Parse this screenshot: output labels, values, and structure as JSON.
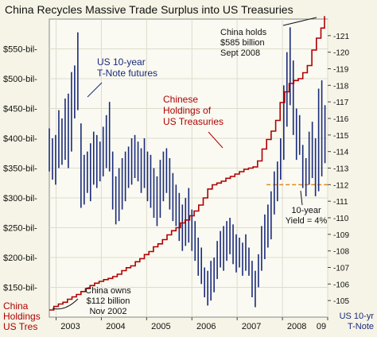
{
  "chart_data": {
    "type": "line",
    "title": "China Recycles Massive Trade Surplus into US Treasuries",
    "x_axis": {
      "tick_labels": [
        "2003",
        "2004",
        "2005",
        "2006",
        "2007",
        "2008",
        "09"
      ],
      "range": [
        2002.85,
        2009.0
      ]
    },
    "y_axis_left": {
      "label": "China Holdings US Tres",
      "label_lines": [
        "China",
        "Holdings",
        "US Tres"
      ],
      "tick_labels": [
        "$150-bil-",
        "$200-bil-",
        "$250-bil-",
        "$300-bil-",
        "$350-bil-",
        "$400-bil-",
        "$450-bil-",
        "$500-bil-",
        "$550-bil-"
      ],
      "tick_values": [
        150,
        200,
        250,
        300,
        350,
        400,
        450,
        500,
        550
      ],
      "range": [
        100,
        600
      ],
      "unit": "$ billion"
    },
    "y_axis_right": {
      "label": "US 10-yr T-Note",
      "label_lines": [
        "US 10-yr",
        "T-Note"
      ],
      "tick_values": [
        105,
        106,
        107,
        108,
        109,
        110,
        111,
        112,
        113,
        114,
        115,
        116,
        117,
        118,
        119,
        120,
        121
      ],
      "range": [
        104,
        122
      ]
    },
    "series": [
      {
        "name": "Chinese Holdings of US Treasuries",
        "label_lines": [
          "Chinese",
          "Holdings of",
          "US Treasuries"
        ],
        "axis": "left",
        "color": "#b00000",
        "style": "step",
        "points": [
          [
            2002.85,
            112
          ],
          [
            2002.95,
            118
          ],
          [
            2003.05,
            122
          ],
          [
            2003.15,
            125
          ],
          [
            2003.25,
            130
          ],
          [
            2003.35,
            134
          ],
          [
            2003.45,
            138
          ],
          [
            2003.55,
            143
          ],
          [
            2003.65,
            148
          ],
          [
            2003.75,
            153
          ],
          [
            2003.85,
            157
          ],
          [
            2003.95,
            160
          ],
          [
            2004.05,
            163
          ],
          [
            2004.15,
            165
          ],
          [
            2004.25,
            168
          ],
          [
            2004.35,
            172
          ],
          [
            2004.45,
            178
          ],
          [
            2004.55,
            183
          ],
          [
            2004.65,
            186
          ],
          [
            2004.75,
            193
          ],
          [
            2004.85,
            198
          ],
          [
            2004.95,
            205
          ],
          [
            2005.05,
            210
          ],
          [
            2005.15,
            218
          ],
          [
            2005.25,
            223
          ],
          [
            2005.35,
            230
          ],
          [
            2005.45,
            238
          ],
          [
            2005.55,
            245
          ],
          [
            2005.65,
            250
          ],
          [
            2005.75,
            258
          ],
          [
            2005.85,
            263
          ],
          [
            2005.95,
            270
          ],
          [
            2006.05,
            278
          ],
          [
            2006.15,
            288
          ],
          [
            2006.25,
            300
          ],
          [
            2006.35,
            315
          ],
          [
            2006.45,
            322
          ],
          [
            2006.55,
            325
          ],
          [
            2006.65,
            328
          ],
          [
            2006.75,
            333
          ],
          [
            2006.85,
            336
          ],
          [
            2006.95,
            340
          ],
          [
            2007.05,
            344
          ],
          [
            2007.15,
            348
          ],
          [
            2007.25,
            350
          ],
          [
            2007.35,
            352
          ],
          [
            2007.45,
            362
          ],
          [
            2007.55,
            382
          ],
          [
            2007.65,
            398
          ],
          [
            2007.75,
            412
          ],
          [
            2007.85,
            430
          ],
          [
            2007.95,
            460
          ],
          [
            2008.05,
            478
          ],
          [
            2008.15,
            492
          ],
          [
            2008.25,
            497
          ],
          [
            2008.35,
            500
          ],
          [
            2008.45,
            510
          ],
          [
            2008.55,
            522
          ],
          [
            2008.65,
            548
          ],
          [
            2008.75,
            568
          ],
          [
            2008.85,
            585
          ],
          [
            2008.93,
            605
          ]
        ]
      },
      {
        "name": "US 10-year T-Note futures",
        "label_lines": [
          "US 10-year",
          "T-Note futures"
        ],
        "axis": "right",
        "color": "#1a2a7a",
        "style": "bars",
        "bars": [
          [
            2002.85,
            112.8,
            115.4
          ],
          [
            2002.92,
            112.3,
            114.8
          ],
          [
            2002.99,
            112.0,
            115.0
          ],
          [
            2003.06,
            113.0,
            116.5
          ],
          [
            2003.13,
            113.2,
            116.0
          ],
          [
            2003.2,
            113.5,
            117.2
          ],
          [
            2003.27,
            113.0,
            117.5
          ],
          [
            2003.34,
            114.0,
            118.8
          ],
          [
            2003.41,
            116.0,
            119.2
          ],
          [
            2003.48,
            116.5,
            121.2
          ],
          [
            2003.55,
            110.6,
            115.7
          ],
          [
            2003.62,
            110.8,
            113.8
          ],
          [
            2003.69,
            111.5,
            114.0
          ],
          [
            2003.76,
            111.0,
            114.5
          ],
          [
            2003.83,
            112.0,
            115.2
          ],
          [
            2003.9,
            111.8,
            115.0
          ],
          [
            2003.97,
            112.2,
            114.6
          ],
          [
            2004.04,
            112.5,
            115.5
          ],
          [
            2004.11,
            113.0,
            116.2
          ],
          [
            2004.18,
            112.8,
            117.0
          ],
          [
            2004.25,
            110.5,
            114.0
          ],
          [
            2004.32,
            109.6,
            112.5
          ],
          [
            2004.39,
            109.8,
            113.0
          ],
          [
            2004.46,
            110.5,
            113.6
          ],
          [
            2004.53,
            111.0,
            114.0
          ],
          [
            2004.6,
            111.8,
            114.3
          ],
          [
            2004.67,
            112.0,
            114.8
          ],
          [
            2004.74,
            112.4,
            115.0
          ],
          [
            2004.81,
            112.2,
            114.6
          ],
          [
            2004.88,
            111.5,
            114.2
          ],
          [
            2004.95,
            111.8,
            114.8
          ],
          [
            2005.02,
            111.0,
            114.0
          ],
          [
            2005.09,
            110.6,
            113.8
          ],
          [
            2005.16,
            110.0,
            113.0
          ],
          [
            2005.23,
            109.5,
            112.5
          ],
          [
            2005.3,
            110.0,
            113.5
          ],
          [
            2005.37,
            111.0,
            114.0
          ],
          [
            2005.44,
            111.5,
            114.2
          ],
          [
            2005.51,
            110.5,
            113.6
          ],
          [
            2005.58,
            109.8,
            112.7
          ],
          [
            2005.65,
            109.5,
            112.0
          ],
          [
            2005.72,
            108.6,
            111.5
          ],
          [
            2005.79,
            108.0,
            110.8
          ],
          [
            2005.86,
            108.3,
            111.2
          ],
          [
            2005.93,
            108.5,
            111.8
          ],
          [
            2006.0,
            108.0,
            110.5
          ],
          [
            2006.07,
            107.4,
            109.8
          ],
          [
            2006.14,
            106.5,
            108.8
          ],
          [
            2006.21,
            106.0,
            108.2
          ],
          [
            2006.28,
            105.2,
            107.0
          ],
          [
            2006.35,
            104.7,
            106.8
          ],
          [
            2006.42,
            105.0,
            107.4
          ],
          [
            2006.49,
            105.5,
            107.6
          ],
          [
            2006.56,
            106.3,
            108.6
          ],
          [
            2006.63,
            107.0,
            109.2
          ],
          [
            2006.7,
            106.8,
            109.5
          ],
          [
            2006.77,
            107.4,
            109.8
          ],
          [
            2006.84,
            107.8,
            110.0
          ],
          [
            2006.91,
            107.2,
            109.6
          ],
          [
            2006.98,
            106.7,
            109.0
          ],
          [
            2007.05,
            107.0,
            108.8
          ],
          [
            2007.12,
            106.5,
            108.5
          ],
          [
            2007.19,
            106.8,
            109.0
          ],
          [
            2007.26,
            106.5,
            108.2
          ],
          [
            2007.33,
            105.2,
            107.4
          ],
          [
            2007.4,
            104.6,
            106.8
          ],
          [
            2007.47,
            105.8,
            107.8
          ],
          [
            2007.54,
            106.8,
            109.5
          ],
          [
            2007.61,
            107.5,
            110.2
          ],
          [
            2007.68,
            108.2,
            110.8
          ],
          [
            2007.75,
            108.7,
            111.6
          ],
          [
            2007.82,
            110.2,
            112.8
          ],
          [
            2007.89,
            111.0,
            113.4
          ],
          [
            2007.96,
            112.3,
            114.8
          ],
          [
            2008.03,
            113.5,
            118.0
          ],
          [
            2008.1,
            115.5,
            120.0
          ],
          [
            2008.17,
            116.8,
            121.5
          ],
          [
            2008.24,
            115.0,
            119.5
          ],
          [
            2008.31,
            113.5,
            116.6
          ],
          [
            2008.38,
            113.8,
            116.2
          ],
          [
            2008.45,
            111.8,
            114.4
          ],
          [
            2008.52,
            111.3,
            113.6
          ],
          [
            2008.59,
            112.0,
            115.2
          ],
          [
            2008.66,
            112.4,
            115.8
          ],
          [
            2008.73,
            111.3,
            114.8
          ],
          [
            2008.8,
            111.6,
            117.8
          ],
          [
            2008.87,
            112.5,
            118.3
          ],
          [
            2008.94,
            113.3,
            116.8
          ]
        ]
      }
    ],
    "reference_line": {
      "axis": "right",
      "value": 112,
      "color": "#e08a1e",
      "style": "dashed",
      "x_range": [
        2007.65,
        2009.0
      ]
    },
    "annotations": [
      {
        "id": "china-holds",
        "lines": [
          "China holds",
          "$585 billion",
          "Sept 2008"
        ]
      },
      {
        "id": "china-owns",
        "lines": [
          "China owns",
          "$112 billion",
          "Nov 2002"
        ]
      },
      {
        "id": "yield",
        "lines": [
          "10-year",
          "Yield = 4%"
        ]
      }
    ]
  }
}
